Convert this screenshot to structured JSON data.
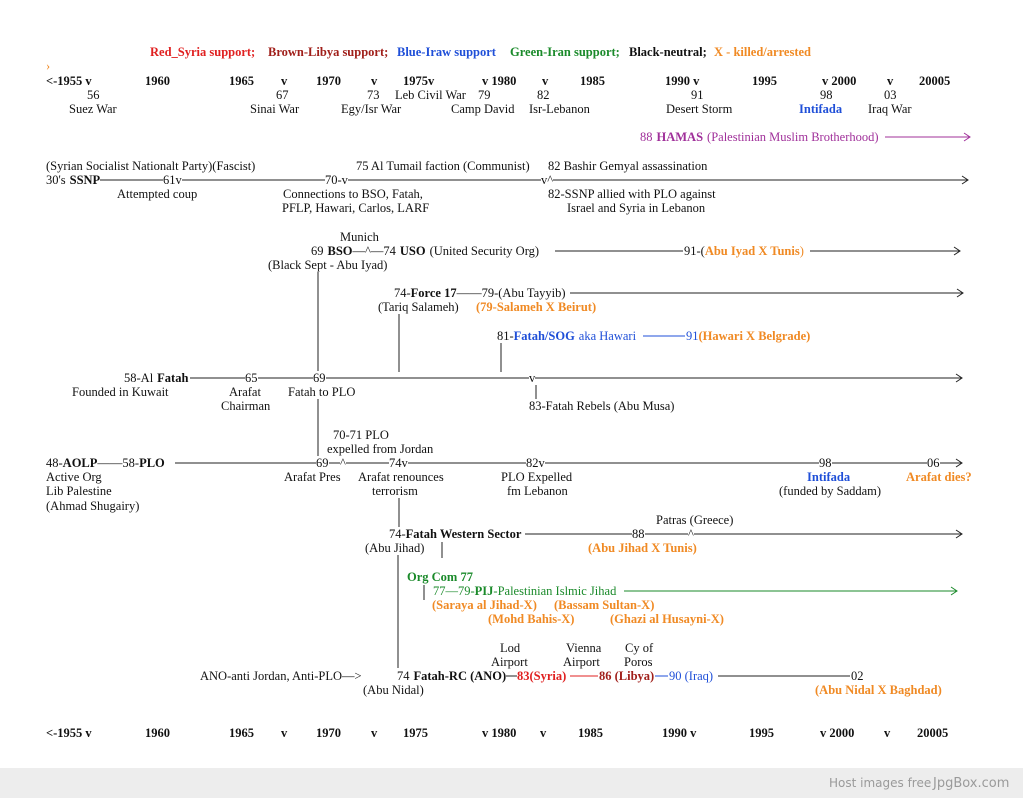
{
  "legend": [
    "Red_Syria support;",
    "Brown-Libya support;",
    "Blue-Iraw support",
    "Green-Iran support;",
    "Black-neutral;",
    "X - killed/arrested"
  ],
  "marker": "›",
  "top": {
    "years": [
      "<-1955  v",
      "1960",
      "1965",
      "v",
      "1970",
      "v",
      "1975v",
      "v 1980",
      "v",
      "1985",
      "1990  v",
      "1995",
      "v  2000",
      "v",
      "20005"
    ],
    "numbers": [
      "56",
      "67",
      "73",
      "79",
      "82",
      "91",
      "98",
      "03"
    ],
    "events": [
      "Suez War",
      "Sinai War",
      "Egy/Isr War",
      "Leb Civil War",
      "Camp David",
      "Isr-Lebanon",
      "Desert Storm",
      "Intifada",
      "Iraq War"
    ]
  },
  "hamas": {
    "year": "88",
    "name": "HAMAS",
    "desc": "(Palestinian Muslim Brotherhood)"
  },
  "ssnp": {
    "notes": [
      "(Syrian Socialist Nationalt Party)(Fascist)",
      "75 Al Tumail faction (Communist)",
      "82 Bashir Gemyal assassination",
      "Attempted coup",
      "Connections to BSO, Fatah,",
      "PFLP, Hawari, Carlos, LARF",
      "82-SSNP allied with PLO against",
      "Israel and Syria in Lebanon"
    ],
    "prefix": "30's",
    "name": "SSNP",
    "marks": [
      "61v",
      "70-v",
      "v^"
    ]
  },
  "bso": {
    "note": "Munich",
    "year": "69",
    "name": "BSO",
    "link": "—^—74",
    "uso": "USO",
    "uso_desc": "(United Security Org)",
    "end": "91-(",
    "fate": "Abu Iyad X Tunis",
    "close": ")",
    "leader": "(Black Sept - Abu Iyad)"
  },
  "force17": {
    "start": "74-",
    "name": "Force 17",
    "next": "——79-(Abu Tayyib)",
    "leader": "(Tariq Salameh)",
    "fate": "(79-Salameh X Beirut)"
  },
  "hawari": {
    "start": "81-",
    "name": "Fatah/SOG",
    "aka": "aka Hawari",
    "end": "91",
    "fate": "(Hawari X Belgrade)"
  },
  "fatah": {
    "start": "58-Al",
    "name": "Fatah",
    "marks": [
      "65",
      "69",
      "v"
    ],
    "notes": [
      "Founded in Kuwait",
      "Arafat",
      "Chairman",
      "Fatah to PLO",
      "83-Fatah Rebels (Abu Musa)"
    ]
  },
  "jordan": [
    "70-71 PLO",
    "expelled from Jordan"
  ],
  "plo": {
    "start": "48-",
    "aolp": "AOLP",
    "mid": "——58-",
    "name": "PLO",
    "marks": [
      "69",
      "^",
      "74v",
      "82v",
      "98",
      "06"
    ],
    "notes": [
      "Active Org",
      "Lib Palestine",
      "(Ahmad Shugairy)",
      "Arafat Pres",
      "Arafat renounces",
      "terrorism",
      "PLO Expelled",
      "fm Lebanon",
      "Intifada",
      "(funded by Saddam)",
      "Arafat dies?"
    ]
  },
  "western": {
    "note": "Patras (Greece)",
    "start": "74-",
    "name": "Fatah Western Sector",
    "marks": [
      "88",
      "^"
    ],
    "leader": "(Abu Jihad)",
    "fate": "(Abu Jihad X Tunis)"
  },
  "pij": {
    "org": "Org Com 77",
    "start": "77—79-",
    "name": "PIJ",
    "desc": "-Palestinian Islmic Jihad",
    "killed": [
      "(Saraya al Jihad-X)",
      "(Bassam Sultan-X)",
      "(Mohd Bahis-X)",
      "(Ghazi al Husayni-X)"
    ]
  },
  "ano": {
    "places": [
      "Lod",
      "Airport",
      "Vienna",
      "Airport",
      "Cy of",
      "Poros"
    ],
    "intro": "ANO-anti Jordan, Anti-PLO—>",
    "start": "74",
    "name": "Fatah-RC (ANO)",
    "syria": "83(Syria)",
    "libya": "86 (Libya)",
    "iraq": "90 (Iraq)",
    "end": "02",
    "leader": "(Abu Nidal)",
    "fate": "(Abu Nidal X Baghdad)"
  },
  "bottom_years": [
    "<-1955  v",
    "1960",
    "1965",
    "v",
    "1970",
    "v",
    "1975",
    "v 1980",
    "v",
    "1985",
    "1990  v",
    "1995",
    "v  2000",
    "v",
    "20005"
  ],
  "footer": {
    "text": "Host images free",
    "brand": "JpgBox.com"
  }
}
